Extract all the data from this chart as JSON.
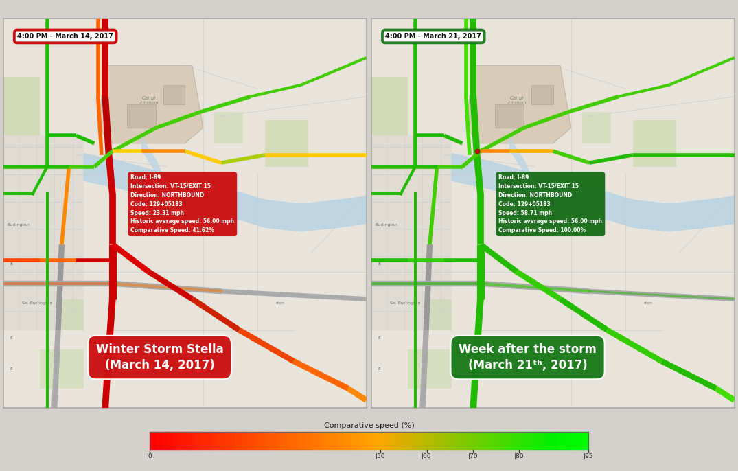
{
  "fig_width": 10.75,
  "fig_height": 6.86,
  "map_bg": "#e8e4dc",
  "left_timestamp": "4:00 PM - March 14, 2017",
  "right_timestamp": "4:00 PM - March 21, 2017",
  "left_title": "Winter Storm Stella\n(March 14, 2017)",
  "right_title": "Week after the storm\n(March 21ᵗʰ, 2017)",
  "left_title_bg": "#cc1111",
  "right_title_bg": "#1a7a1a",
  "left_oval_color": "#cc0000",
  "right_oval_color": "#1a7a1a",
  "left_info": [
    "Road: I-89",
    "Intersection: VT-15/EXIT 15",
    "Direction: NORTHBOUND",
    "Code: 129+05183",
    "Speed: 23.31 mph",
    "Historic average speed: 56.00 mph",
    "Comparative Speed: 41.62%"
  ],
  "right_info": [
    "Road: I-89",
    "Intersection: VT-15/EXIT 15",
    "Direction: NORTHBOUND",
    "Code: 129+05183",
    "Speed: 58.71 mph",
    "Historic average speed: 56.00 mph",
    "Comparative Speed: 100.00%"
  ],
  "left_info_bg": "#cc1111",
  "right_info_bg": "#1a6e1a",
  "legend_title": "Comparative speed (%)",
  "legend_ticks": [
    "0",
    "50",
    "60",
    "70",
    "80",
    "95"
  ],
  "water_color": "#b8d4e4",
  "green_area": "#c8d8a8",
  "camp_color": "#d8ccb8",
  "urban_color": "#ddd8d0",
  "overall_bg": "#d4d0cc"
}
